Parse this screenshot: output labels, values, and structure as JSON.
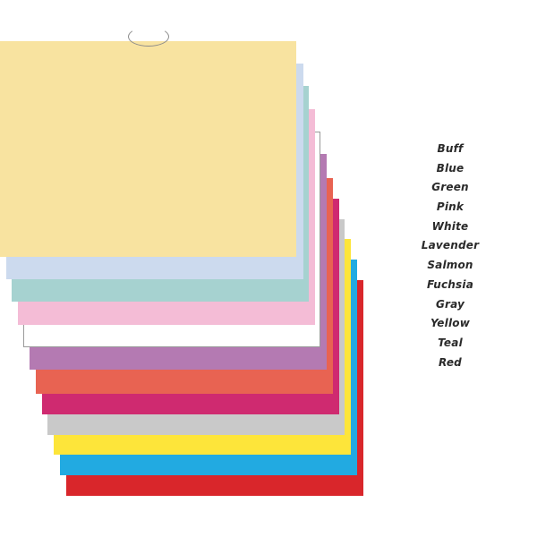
{
  "sheets": [
    {
      "key": "red",
      "label": "Red",
      "color": "#d9262b"
    },
    {
      "key": "teal",
      "label": "Teal",
      "color": "#22aae1"
    },
    {
      "key": "yellow",
      "label": "Yellow",
      "color": "#fde53a"
    },
    {
      "key": "gray",
      "label": "Gray",
      "color": "#c9c9c9"
    },
    {
      "key": "fuchsia",
      "label": "Fuchsia",
      "color": "#cf2a70"
    },
    {
      "key": "salmon",
      "label": "Salmon",
      "color": "#e86352"
    },
    {
      "key": "lavender",
      "label": "Lavender",
      "color": "#b47ab2"
    },
    {
      "key": "white",
      "label": "White",
      "color": "#ffffff"
    },
    {
      "key": "pink",
      "label": "Pink",
      "color": "#f4bcd6"
    },
    {
      "key": "green",
      "label": "Green",
      "color": "#a6d2d0"
    },
    {
      "key": "blue",
      "label": "Blue",
      "color": "#ccdaee"
    },
    {
      "key": "buff",
      "label": "Buff",
      "color": "#f8e3a0"
    }
  ],
  "legend": [
    "Buff",
    "Blue",
    "Green",
    "Pink",
    "White",
    "Lavender",
    "Salmon",
    "Fuchsia",
    "Gray",
    "Yellow",
    "Teal",
    "Red"
  ]
}
